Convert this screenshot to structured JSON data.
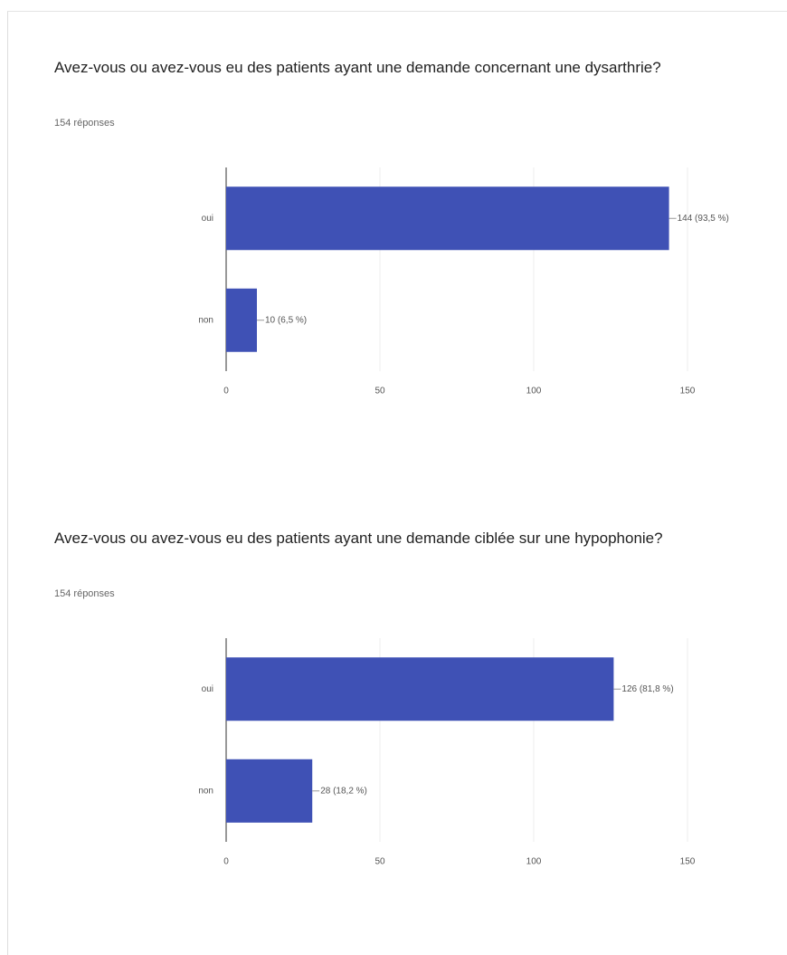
{
  "chart_data": [
    {
      "type": "bar",
      "orientation": "horizontal",
      "title": "Avez-vous ou avez-vous eu des patients ayant une demande concernant une dysarthrie?",
      "subtitle": "154 réponses",
      "categories": [
        "oui",
        "non"
      ],
      "values": [
        144,
        10
      ],
      "value_labels": [
        "144 (93,5 %)",
        "10 (6,5 %)"
      ],
      "color": "#3f51b5",
      "xlim": [
        0,
        150
      ],
      "xticks": [
        0,
        50,
        100,
        150
      ],
      "grid": true
    },
    {
      "type": "bar",
      "orientation": "horizontal",
      "title": "Avez-vous ou avez-vous eu des patients ayant une demande ciblée sur une hypophonie?",
      "subtitle": "154 réponses",
      "categories": [
        "oui",
        "non"
      ],
      "values": [
        126,
        28
      ],
      "value_labels": [
        "126 (81,8 %)",
        "28 (18,2 %)"
      ],
      "color": "#3f51b5",
      "xlim": [
        0,
        150
      ],
      "xticks": [
        0,
        50,
        100,
        150
      ],
      "grid": true
    }
  ]
}
